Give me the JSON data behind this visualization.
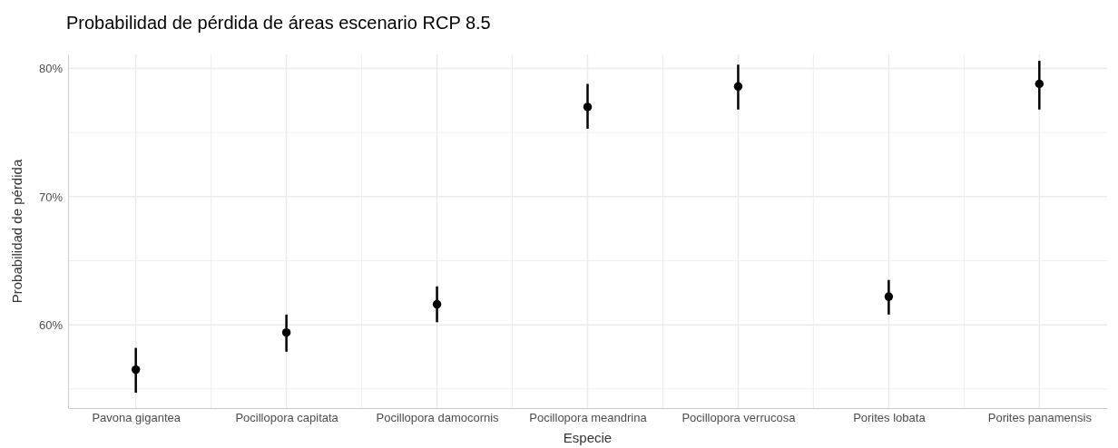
{
  "chart_data": {
    "type": "scatter",
    "title": "Probabilidad de pérdida de áreas escenario RCP 8.5",
    "xlabel": "Especie",
    "ylabel": "Probabilidad de pérdida",
    "categories": [
      "Pavona gigantea",
      "Pocillopora capitata",
      "Pocillopora damocornis",
      "Pocillopora meandrina",
      "Pocillopora verrucosa",
      "Porites lobata",
      "Porites panamensis"
    ],
    "series": [
      {
        "color": "#000000",
        "values": [
          56.5,
          59.4,
          61.6,
          77.0,
          78.6,
          62.2,
          78.8
        ],
        "errors": [
          [
            54.7,
            58.2
          ],
          [
            57.9,
            60.8
          ],
          [
            60.2,
            63.0
          ],
          [
            75.3,
            78.8
          ],
          [
            76.8,
            80.3
          ],
          [
            60.8,
            63.5
          ],
          [
            76.8,
            80.6
          ]
        ]
      }
    ],
    "ylim": [
      53.5,
      81.1
    ],
    "yticks": [
      {
        "value": 55,
        "label": null
      },
      {
        "value": 60,
        "label": "60%"
      },
      {
        "value": 65,
        "label": null
      },
      {
        "value": 70,
        "label": "70%"
      },
      {
        "value": 75,
        "label": null
      },
      {
        "value": 80,
        "label": "80%"
      }
    ],
    "grid": true,
    "marker": "circle"
  }
}
